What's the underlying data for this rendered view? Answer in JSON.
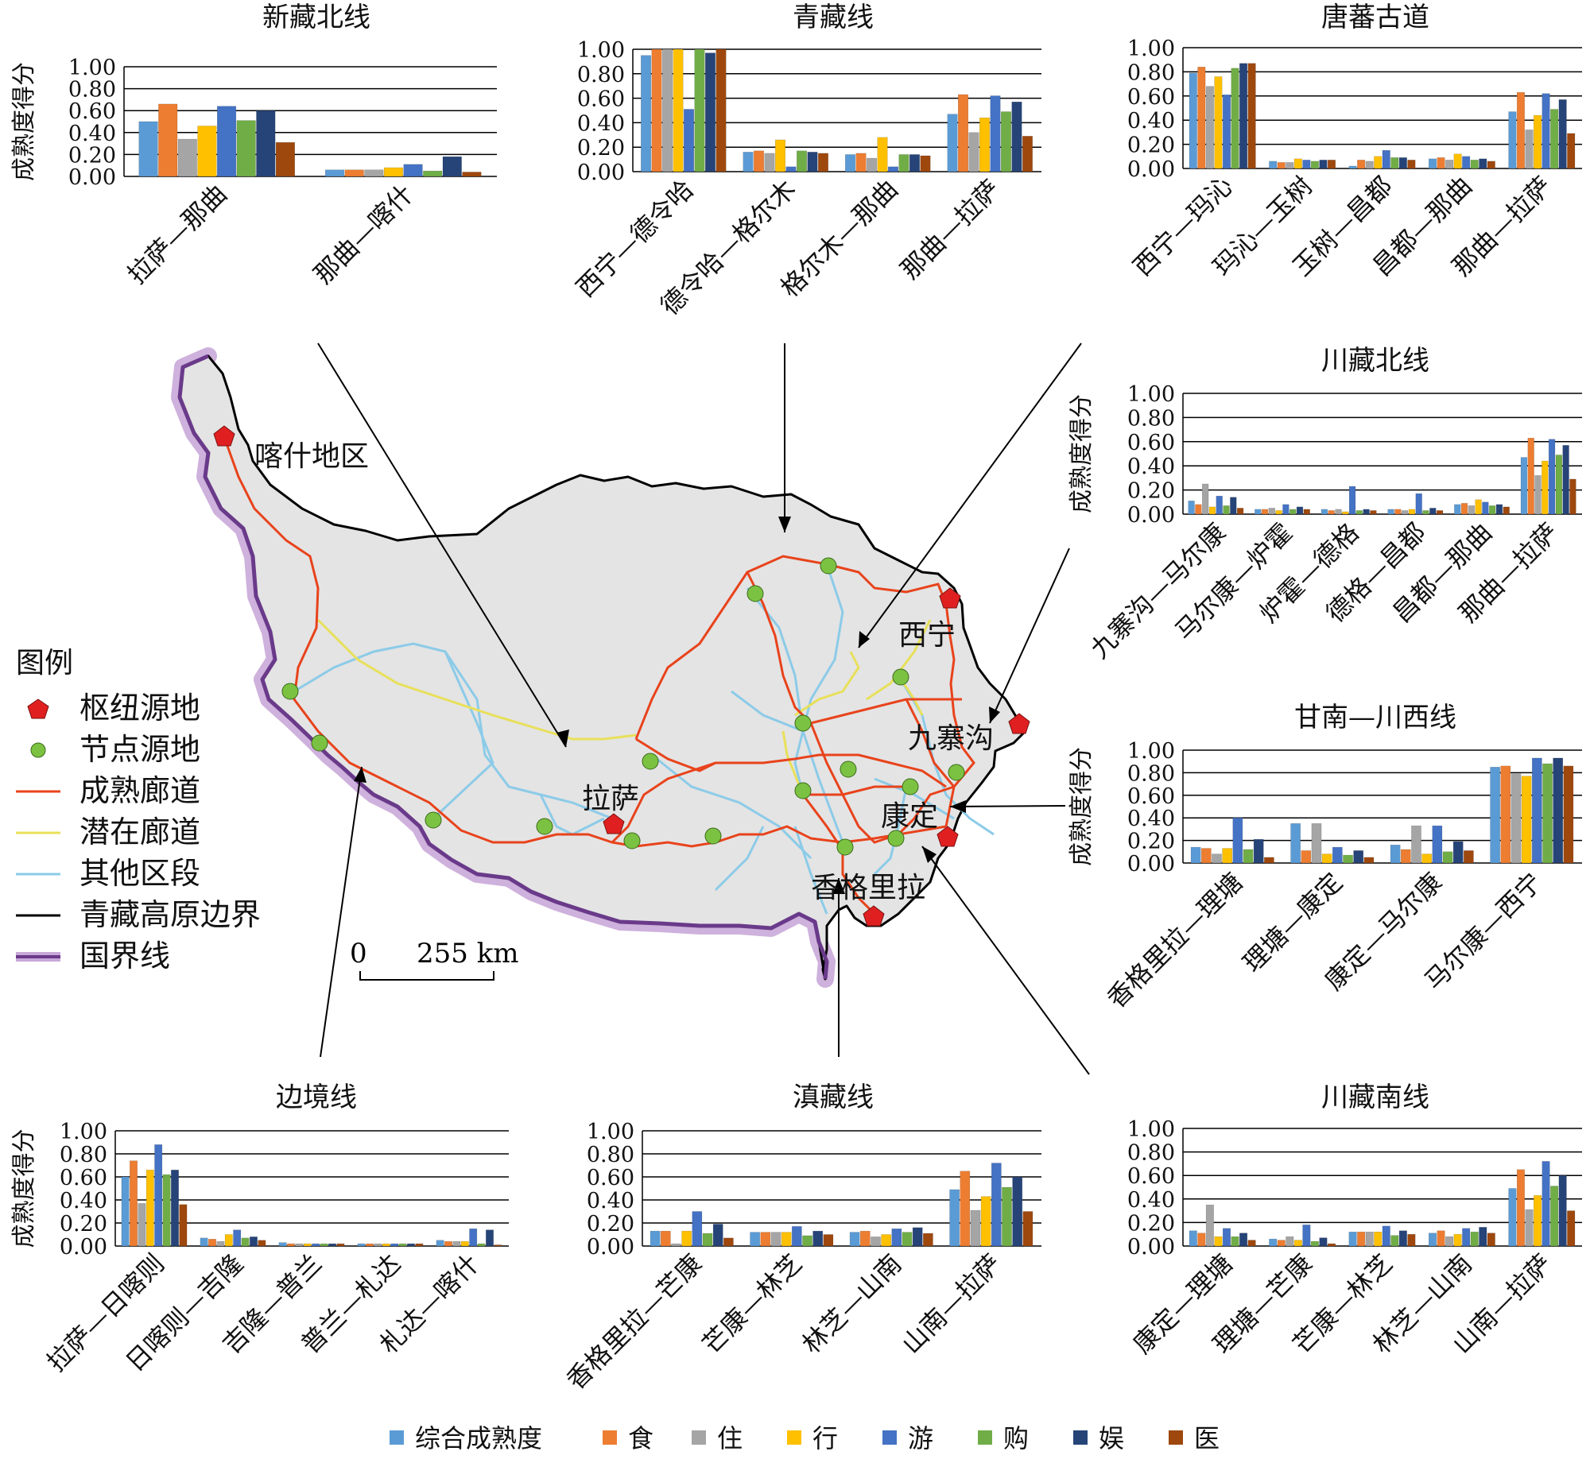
{
  "map": {
    "places": {
      "kashi": "喀什地区",
      "xining": "西宁",
      "jiuzhaigou": "九寨沟",
      "lhasa": "拉萨",
      "kangding": "康定",
      "shangrila": "香格里拉"
    },
    "scale": {
      "zero": "0",
      "distance": "255 km"
    },
    "colors": {
      "plateau_fill": "#e4e4e4",
      "boundary": "#000000",
      "border_glow": "#c9a8d8",
      "border_line": "#6a3a8a",
      "mature": "#e8431c",
      "potential": "#e8e05a",
      "other": "#8ccbe8",
      "hub": "#e02020",
      "node": "#7cc242"
    }
  },
  "legend": {
    "title": "图例",
    "items": [
      {
        "label": "枢纽源地",
        "symbol": "hub-pentagon-icon"
      },
      {
        "label": "节点源地",
        "symbol": "node-circle-icon"
      },
      {
        "label": "成熟廊道",
        "symbol": "mature-line-icon"
      },
      {
        "label": "潜在廊道",
        "symbol": "potential-line-icon"
      },
      {
        "label": "其他区段",
        "symbol": "other-line-icon"
      },
      {
        "label": "青藏高原边界",
        "symbol": "boundary-line-icon"
      },
      {
        "label": "国界线",
        "symbol": "border-line-icon"
      }
    ]
  },
  "series_legend": [
    {
      "name": "综合成熟度",
      "color": "#5b9bd5"
    },
    {
      "name": "食",
      "color": "#ed7d31"
    },
    {
      "name": "住",
      "color": "#a5a5a5"
    },
    {
      "name": "行",
      "color": "#ffc000"
    },
    {
      "name": "游",
      "color": "#4472c4"
    },
    {
      "name": "购",
      "color": "#70ad47"
    },
    {
      "name": "娱",
      "color": "#264478"
    },
    {
      "name": "医",
      "color": "#9e480e"
    }
  ],
  "chart_data": [
    {
      "type": "bar",
      "title": "新藏北线",
      "ylabel": "成熟度得分",
      "ylim": [
        0,
        1
      ],
      "yticks": [
        "0.00",
        "0.20",
        "0.40",
        "0.60",
        "0.80",
        "1.00"
      ],
      "categories": [
        "拉萨—那曲",
        "那曲—喀什"
      ],
      "series": [
        {
          "name": "综合成熟度",
          "values": [
            0.5,
            0.06
          ]
        },
        {
          "name": "食",
          "values": [
            0.66,
            0.06
          ]
        },
        {
          "name": "住",
          "values": [
            0.34,
            0.06
          ]
        },
        {
          "name": "行",
          "values": [
            0.46,
            0.08
          ]
        },
        {
          "name": "游",
          "values": [
            0.64,
            0.11
          ]
        },
        {
          "name": "购",
          "values": [
            0.51,
            0.05
          ]
        },
        {
          "name": "娱",
          "values": [
            0.6,
            0.18
          ]
        },
        {
          "name": "医",
          "values": [
            0.31,
            0.04
          ]
        }
      ]
    },
    {
      "type": "bar",
      "title": "青藏线",
      "ylabel": "",
      "ylim": [
        0,
        1
      ],
      "yticks": [
        "0.00",
        "0.20",
        "0.40",
        "0.60",
        "0.80",
        "1.00"
      ],
      "categories": [
        "西宁—德令哈",
        "德令哈—格尔木",
        "格尔木—那曲",
        "那曲—拉萨"
      ],
      "series": [
        {
          "name": "综合成熟度",
          "values": [
            0.95,
            0.16,
            0.14,
            0.47
          ]
        },
        {
          "name": "食",
          "values": [
            1.0,
            0.17,
            0.15,
            0.63
          ]
        },
        {
          "name": "住",
          "values": [
            1.0,
            0.15,
            0.11,
            0.32
          ]
        },
        {
          "name": "行",
          "values": [
            1.0,
            0.26,
            0.28,
            0.44
          ]
        },
        {
          "name": "游",
          "values": [
            0.51,
            0.04,
            0.04,
            0.62
          ]
        },
        {
          "name": "购",
          "values": [
            1.0,
            0.17,
            0.14,
            0.49
          ]
        },
        {
          "name": "娱",
          "values": [
            0.97,
            0.16,
            0.14,
            0.57
          ]
        },
        {
          "name": "医",
          "values": [
            1.0,
            0.15,
            0.13,
            0.29
          ]
        }
      ]
    },
    {
      "type": "bar",
      "title": "唐蕃古道",
      "ylabel": "",
      "ylim": [
        0,
        1
      ],
      "yticks": [
        "0.00",
        "0.20",
        "0.40",
        "0.60",
        "0.80",
        "1.00"
      ],
      "categories": [
        "西宁—玛沁",
        "玛沁—玉树",
        "玉树—昌都",
        "昌都—那曲",
        "那曲—拉萨"
      ],
      "series": [
        {
          "name": "综合成熟度",
          "values": [
            0.79,
            0.06,
            0.02,
            0.08,
            0.47
          ]
        },
        {
          "name": "食",
          "values": [
            0.84,
            0.05,
            0.07,
            0.09,
            0.63
          ]
        },
        {
          "name": "住",
          "values": [
            0.68,
            0.05,
            0.06,
            0.07,
            0.32
          ]
        },
        {
          "name": "行",
          "values": [
            0.76,
            0.08,
            0.1,
            0.12,
            0.44
          ]
        },
        {
          "name": "游",
          "values": [
            0.61,
            0.07,
            0.15,
            0.1,
            0.62
          ]
        },
        {
          "name": "购",
          "values": [
            0.83,
            0.06,
            0.09,
            0.07,
            0.49
          ]
        },
        {
          "name": "娱",
          "values": [
            0.87,
            0.07,
            0.09,
            0.08,
            0.57
          ]
        },
        {
          "name": "医",
          "values": [
            0.87,
            0.07,
            0.07,
            0.06,
            0.29
          ]
        }
      ]
    },
    {
      "type": "bar",
      "title": "川藏北线",
      "ylabel": "成熟度得分",
      "ylim": [
        0,
        1
      ],
      "yticks": [
        "0.00",
        "0.20",
        "0.40",
        "0.60",
        "0.80",
        "1.00"
      ],
      "categories": [
        "九寨沟—马尔康",
        "马尔康—炉霍",
        "炉霍—德格",
        "德格—昌都",
        "昌都—那曲",
        "那曲—拉萨"
      ],
      "series": [
        {
          "name": "综合成熟度",
          "values": [
            0.11,
            0.04,
            0.04,
            0.04,
            0.08,
            0.47
          ]
        },
        {
          "name": "食",
          "values": [
            0.08,
            0.04,
            0.03,
            0.04,
            0.09,
            0.63
          ]
        },
        {
          "name": "住",
          "values": [
            0.25,
            0.05,
            0.04,
            0.03,
            0.07,
            0.32
          ]
        },
        {
          "name": "行",
          "values": [
            0.06,
            0.03,
            0.02,
            0.04,
            0.12,
            0.44
          ]
        },
        {
          "name": "游",
          "values": [
            0.15,
            0.08,
            0.23,
            0.17,
            0.1,
            0.62
          ]
        },
        {
          "name": "购",
          "values": [
            0.07,
            0.04,
            0.03,
            0.03,
            0.07,
            0.49
          ]
        },
        {
          "name": "娱",
          "values": [
            0.14,
            0.06,
            0.04,
            0.05,
            0.08,
            0.57
          ]
        },
        {
          "name": "医",
          "values": [
            0.05,
            0.04,
            0.03,
            0.03,
            0.06,
            0.29
          ]
        }
      ]
    },
    {
      "type": "bar",
      "title": "甘南—川西线",
      "ylabel": "成熟度得分",
      "ylim": [
        0,
        1
      ],
      "yticks": [
        "0.00",
        "0.20",
        "0.40",
        "0.60",
        "0.80",
        "1.00"
      ],
      "categories": [
        "香格里拉—理塘",
        "理塘—康定",
        "康定—马尔康",
        "马尔康—西宁"
      ],
      "series": [
        {
          "name": "综合成熟度",
          "values": [
            0.14,
            0.35,
            0.16,
            0.85
          ]
        },
        {
          "name": "食",
          "values": [
            0.13,
            0.11,
            0.12,
            0.86
          ]
        },
        {
          "name": "住",
          "values": [
            0.08,
            0.35,
            0.33,
            0.79
          ]
        },
        {
          "name": "行",
          "values": [
            0.13,
            0.08,
            0.08,
            0.77
          ]
        },
        {
          "name": "游",
          "values": [
            0.4,
            0.14,
            0.33,
            0.93
          ]
        },
        {
          "name": "购",
          "values": [
            0.12,
            0.07,
            0.1,
            0.88
          ]
        },
        {
          "name": "娱",
          "values": [
            0.21,
            0.11,
            0.19,
            0.93
          ]
        },
        {
          "name": "医",
          "values": [
            0.05,
            0.05,
            0.11,
            0.86
          ]
        }
      ]
    },
    {
      "type": "bar",
      "title": "边境线",
      "ylabel": "成熟度得分",
      "ylim": [
        0,
        1
      ],
      "yticks": [
        "0.00",
        "0.20",
        "0.40",
        "0.60",
        "0.80",
        "1.00"
      ],
      "categories": [
        "拉萨—日喀则",
        "日喀则—吉隆",
        "吉隆—普兰",
        "普兰—札达",
        "札达—喀什"
      ],
      "series": [
        {
          "name": "综合成熟度",
          "values": [
            0.6,
            0.07,
            0.03,
            0.02,
            0.05
          ]
        },
        {
          "name": "食",
          "values": [
            0.74,
            0.06,
            0.02,
            0.02,
            0.04
          ]
        },
        {
          "name": "住",
          "values": [
            0.37,
            0.04,
            0.02,
            0.02,
            0.04
          ]
        },
        {
          "name": "行",
          "values": [
            0.66,
            0.1,
            0.02,
            0.02,
            0.04
          ]
        },
        {
          "name": "游",
          "values": [
            0.88,
            0.14,
            0.02,
            0.02,
            0.15
          ]
        },
        {
          "name": "购",
          "values": [
            0.62,
            0.07,
            0.02,
            0.02,
            0.02
          ]
        },
        {
          "name": "娱",
          "values": [
            0.66,
            0.08,
            0.02,
            0.02,
            0.14
          ]
        },
        {
          "name": "医",
          "values": [
            0.36,
            0.05,
            0.02,
            0.02,
            0.01
          ]
        }
      ]
    },
    {
      "type": "bar",
      "title": "滇藏线",
      "ylabel": "",
      "ylim": [
        0,
        1
      ],
      "yticks": [
        "0.00",
        "0.20",
        "0.40",
        "0.60",
        "0.80",
        "1.00"
      ],
      "categories": [
        "香格里拉—芒康",
        "芒康—林芝",
        "林芝—山南",
        "山南—拉萨"
      ],
      "series": [
        {
          "name": "综合成熟度",
          "values": [
            0.13,
            0.12,
            0.12,
            0.49
          ]
        },
        {
          "name": "食",
          "values": [
            0.13,
            0.12,
            0.13,
            0.65
          ]
        },
        {
          "name": "住",
          "values": [
            0.02,
            0.12,
            0.08,
            0.31
          ]
        },
        {
          "name": "行",
          "values": [
            0.13,
            0.12,
            0.1,
            0.43
          ]
        },
        {
          "name": "游",
          "values": [
            0.3,
            0.17,
            0.15,
            0.72
          ]
        },
        {
          "name": "购",
          "values": [
            0.11,
            0.09,
            0.12,
            0.51
          ]
        },
        {
          "name": "娱",
          "values": [
            0.19,
            0.13,
            0.16,
            0.6
          ]
        },
        {
          "name": "医",
          "values": [
            0.07,
            0.1,
            0.11,
            0.3
          ]
        }
      ]
    },
    {
      "type": "bar",
      "title": "川藏南线",
      "ylabel": "",
      "ylim": [
        0,
        1
      ],
      "yticks": [
        "0.00",
        "0.20",
        "0.40",
        "0.60",
        "0.80",
        "1.00"
      ],
      "categories": [
        "康定—理塘",
        "理塘—芒康",
        "芒康—林芝",
        "林芝—山南",
        "山南—拉萨"
      ],
      "series": [
        {
          "name": "综合成熟度",
          "values": [
            0.13,
            0.06,
            0.12,
            0.11,
            0.49
          ]
        },
        {
          "name": "食",
          "values": [
            0.11,
            0.05,
            0.12,
            0.13,
            0.65
          ]
        },
        {
          "name": "住",
          "values": [
            0.35,
            0.08,
            0.12,
            0.08,
            0.31
          ]
        },
        {
          "name": "行",
          "values": [
            0.08,
            0.05,
            0.12,
            0.1,
            0.43
          ]
        },
        {
          "name": "游",
          "values": [
            0.15,
            0.18,
            0.17,
            0.15,
            0.72
          ]
        },
        {
          "name": "购",
          "values": [
            0.08,
            0.04,
            0.09,
            0.12,
            0.51
          ]
        },
        {
          "name": "娱",
          "values": [
            0.11,
            0.07,
            0.13,
            0.16,
            0.6
          ]
        },
        {
          "name": "医",
          "values": [
            0.05,
            0.02,
            0.1,
            0.11,
            0.3
          ]
        }
      ]
    }
  ]
}
